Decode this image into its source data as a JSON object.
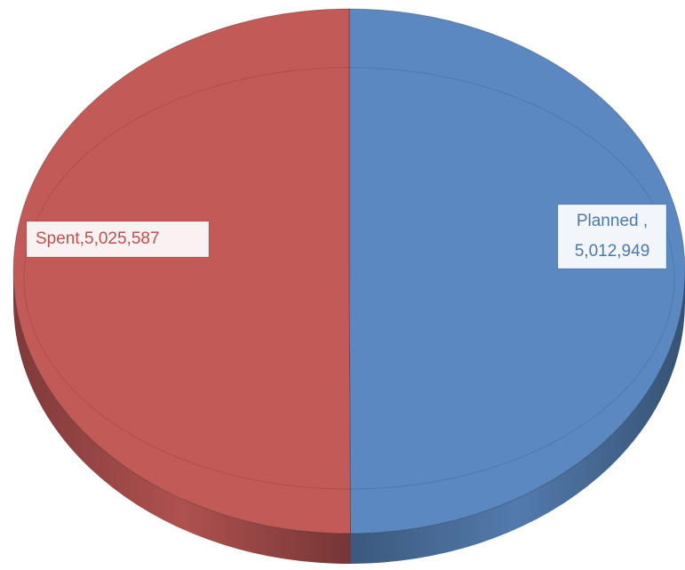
{
  "chart_data": {
    "type": "pie",
    "categories": [
      "Planned ,",
      "Spent,"
    ],
    "values": [
      5012949,
      5025587
    ],
    "value_labels": [
      "5,012,949",
      "5,025,587"
    ],
    "colors": [
      "#5b88c0",
      "#c25a58"
    ]
  }
}
